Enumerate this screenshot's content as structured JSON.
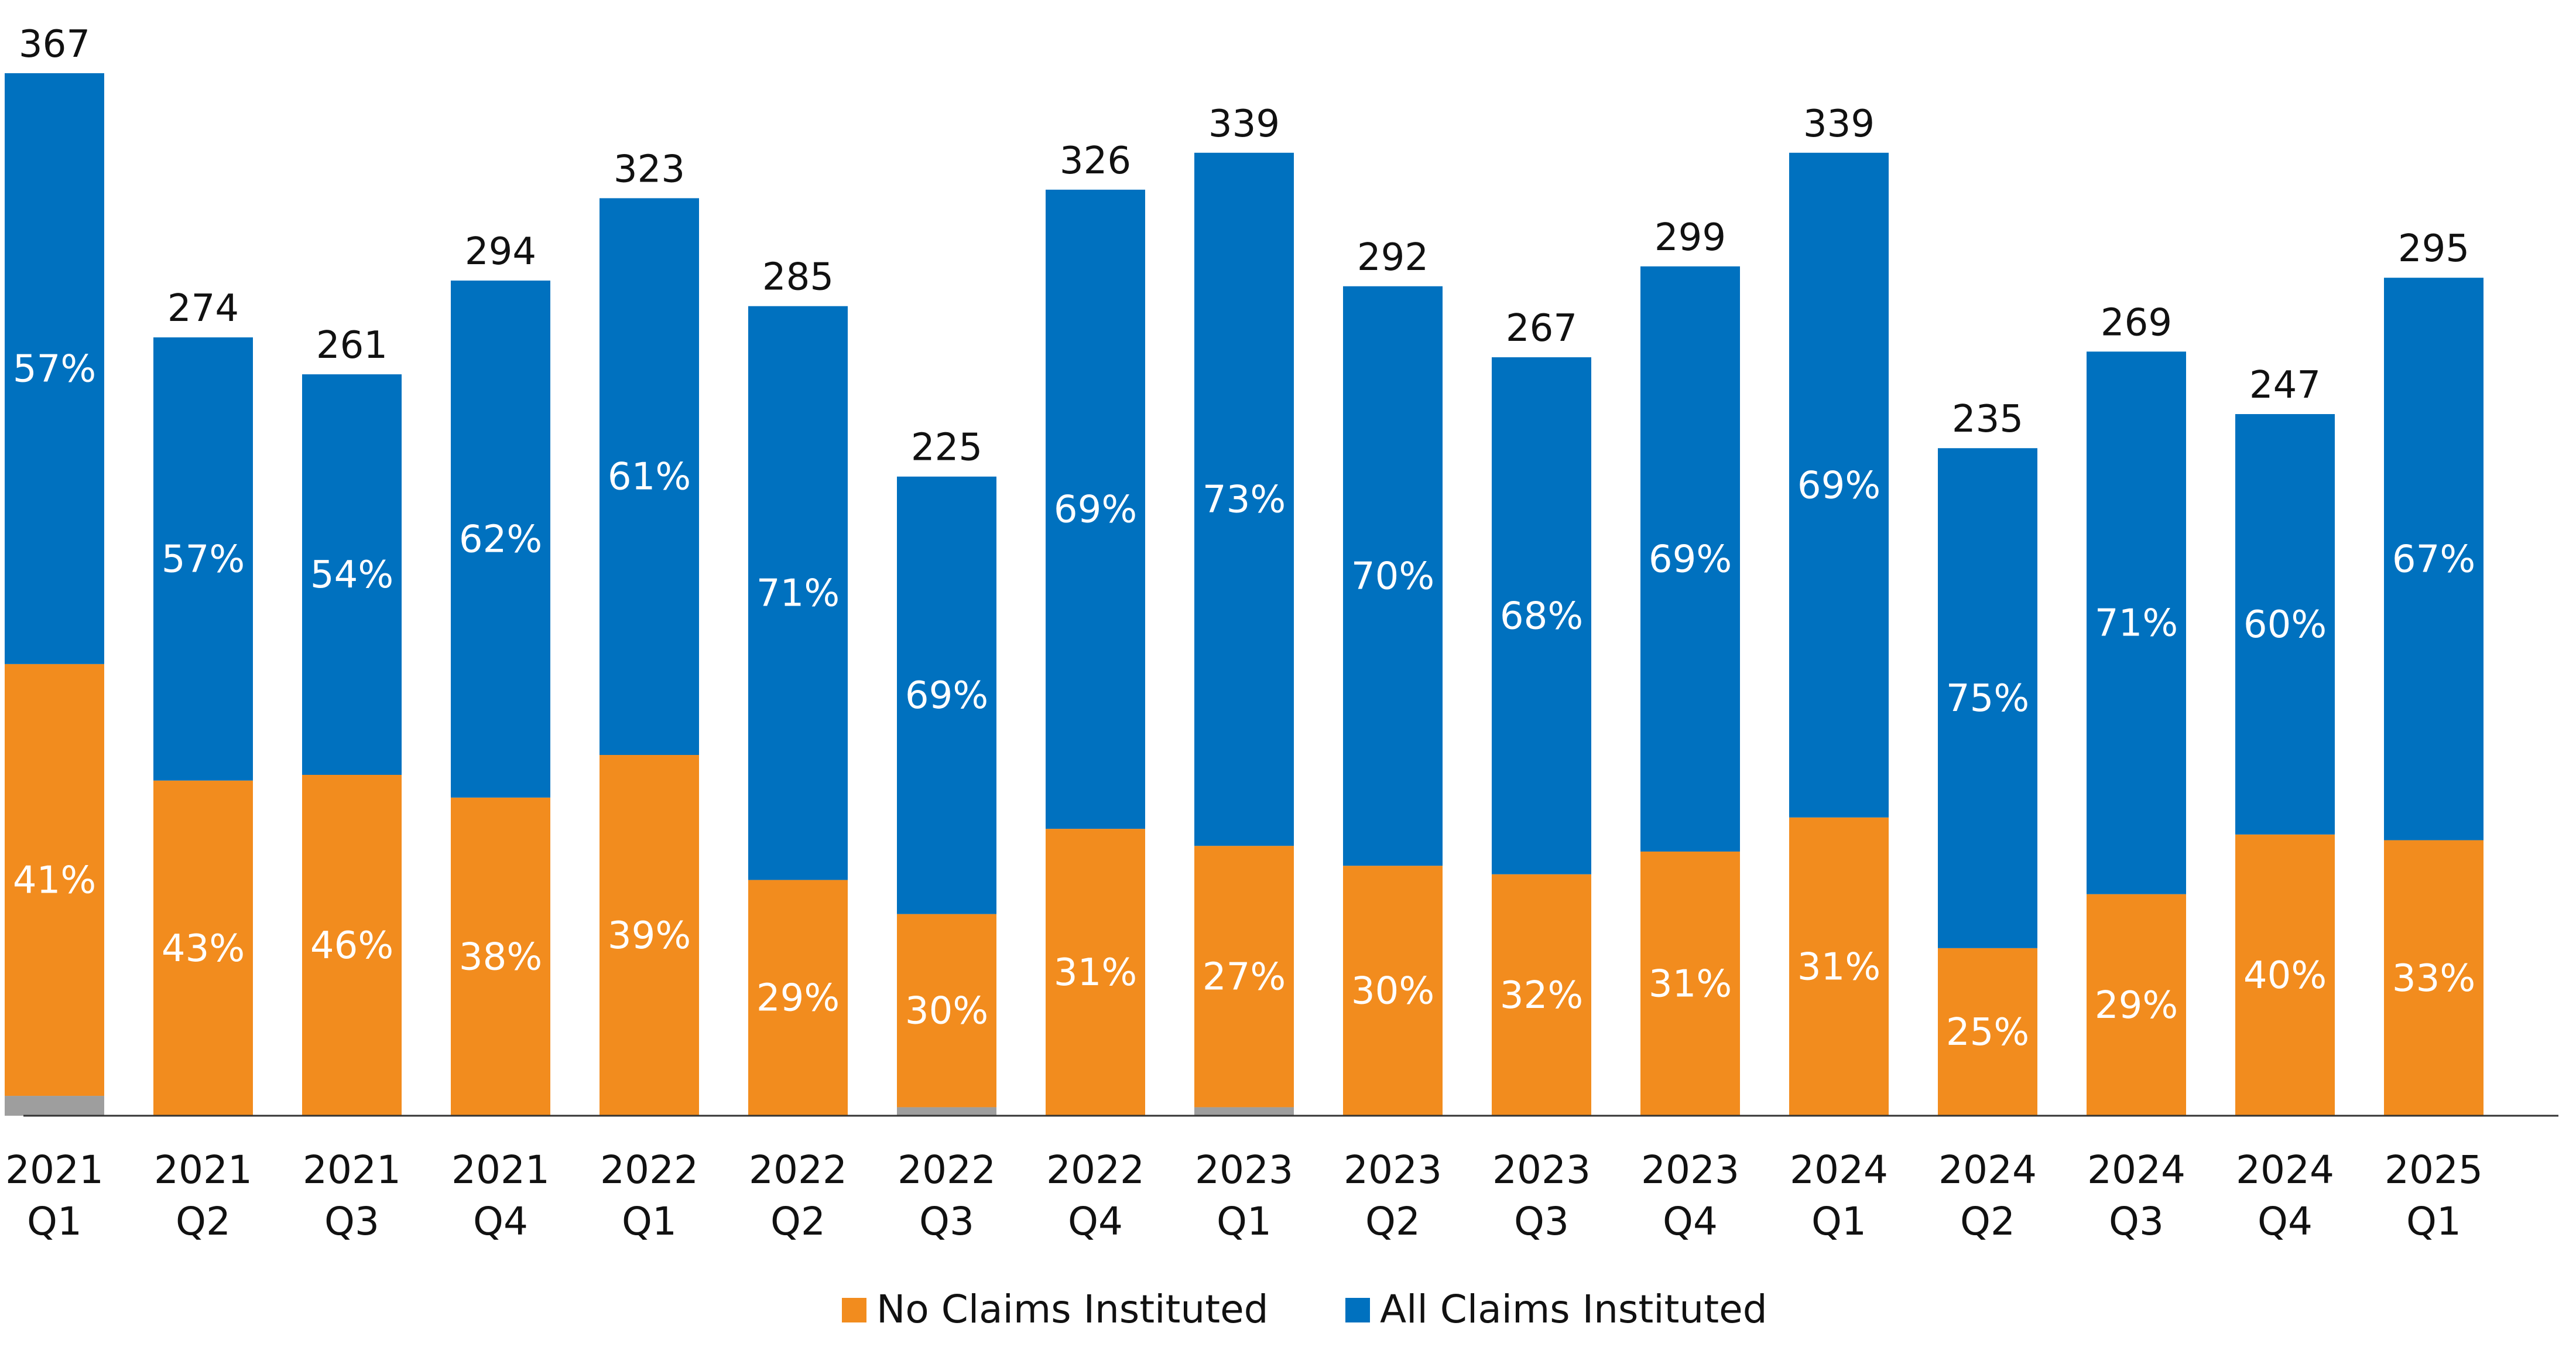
{
  "chart_data": {
    "type": "bar",
    "stacked": true,
    "categories": [
      [
        "2021",
        "Q1"
      ],
      [
        "2021",
        "Q2"
      ],
      [
        "2021",
        "Q3"
      ],
      [
        "2021",
        "Q4"
      ],
      [
        "2022",
        "Q1"
      ],
      [
        "2022",
        "Q2"
      ],
      [
        "2022",
        "Q3"
      ],
      [
        "2022",
        "Q4"
      ],
      [
        "2023",
        "Q1"
      ],
      [
        "2023",
        "Q2"
      ],
      [
        "2023",
        "Q3"
      ],
      [
        "2023",
        "Q4"
      ],
      [
        "2024",
        "Q1"
      ],
      [
        "2024",
        "Q2"
      ],
      [
        "2024",
        "Q3"
      ],
      [
        "2024",
        "Q4"
      ],
      [
        "2025",
        "Q1"
      ]
    ],
    "totals": [
      367,
      274,
      261,
      294,
      323,
      285,
      225,
      326,
      339,
      292,
      267,
      299,
      339,
      235,
      269,
      247,
      295
    ],
    "series": [
      {
        "name": "",
        "color": "#9e9e9e",
        "percent_labels": [],
        "values": [
          7,
          0,
          0,
          0,
          0,
          0,
          3,
          0,
          3,
          0,
          0,
          0,
          0,
          0,
          0,
          0,
          0
        ]
      },
      {
        "name": "No Claims Instituted",
        "color": "#f28c1e",
        "percent_labels": [
          "41%",
          "43%",
          "46%",
          "38%",
          "39%",
          "29%",
          "30%",
          "31%",
          "27%",
          "30%",
          "32%",
          "31%",
          "31%",
          "25%",
          "29%",
          "40%",
          "33%"
        ],
        "values": [
          152,
          118,
          120,
          112,
          127,
          83,
          68,
          101,
          92,
          88,
          85,
          93,
          105,
          59,
          78,
          99,
          97
        ]
      },
      {
        "name": "All Claims Instituted",
        "color": "#0071bf",
        "percent_labels": [
          "57%",
          "57%",
          "54%",
          "62%",
          "61%",
          "71%",
          "69%",
          "69%",
          "73%",
          "70%",
          "68%",
          "69%",
          "69%",
          "75%",
          "71%",
          "60%",
          "67%"
        ],
        "values": [
          208,
          156,
          141,
          182,
          196,
          202,
          154,
          225,
          244,
          204,
          182,
          206,
          234,
          176,
          191,
          148,
          198
        ]
      }
    ],
    "ylim": [
      0,
      367
    ],
    "grid": false,
    "legend_position": "bottom"
  }
}
